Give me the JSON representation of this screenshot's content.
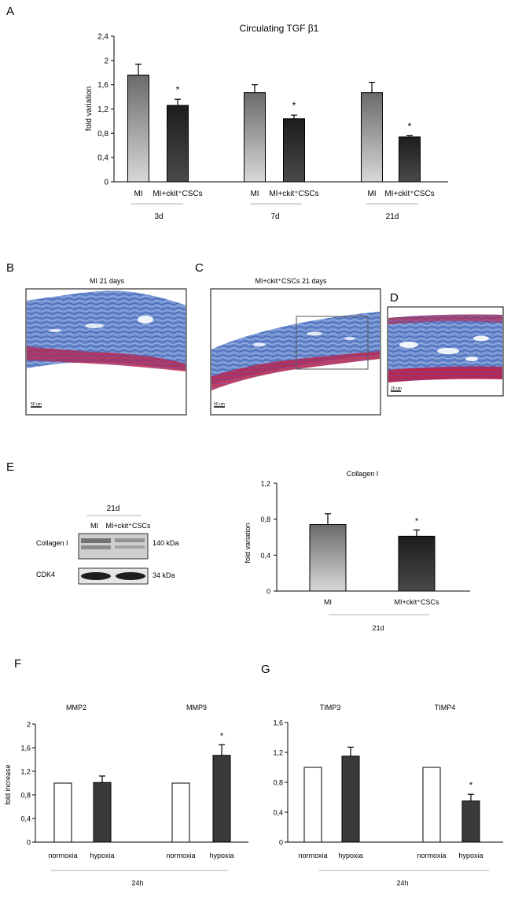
{
  "panels": {
    "a": "A",
    "b": "B",
    "c": "C",
    "d": "D",
    "e": "E",
    "f": "F",
    "g": "G"
  },
  "micrographs": {
    "b": {
      "title": "MI 21 days",
      "scale": "50 um"
    },
    "c": {
      "title": "MI+ckit⁺CSCs 21 days",
      "scale": "50 um"
    },
    "d": {
      "title": "",
      "scale": "20 um"
    },
    "colors": {
      "background": "#ffffff",
      "collagen_blue": "#4f78c4",
      "muscle_red": "#c0284a",
      "purple": "#7a4fa0"
    }
  },
  "western_blot": {
    "time": "21d",
    "lane_labels": [
      "MI",
      "MI+ckit⁺CSCs"
    ],
    "rows": [
      {
        "label": "Collagen I",
        "mw": "140 kDa"
      },
      {
        "label": "CDK4",
        "mw": "34 kDa"
      }
    ]
  },
  "chart_data": [
    {
      "id": "a",
      "type": "bar",
      "title": "Circulating TGF β1",
      "ylabel": "fold variation",
      "ylim": [
        0,
        2.4
      ],
      "yticks": [
        "0",
        "0,4",
        "0,8",
        "1,2",
        "1,6",
        "2",
        "2,4"
      ],
      "groups": [
        "3d",
        "7d",
        "21d"
      ],
      "categories": [
        "MI",
        "MI+ckit⁺CSCs",
        "MI",
        "MI+ckit⁺CSCs",
        "MI",
        "MI+ckit⁺CSCs"
      ],
      "values": [
        1.76,
        1.26,
        1.47,
        1.04,
        1.47,
        0.74
      ],
      "errors": [
        0.18,
        0.1,
        0.13,
        0.06,
        0.17,
        0.02
      ],
      "significance": [
        "",
        "*",
        "",
        "*",
        "",
        "*"
      ],
      "bar_styles": [
        "light-gradient",
        "dark-gradient",
        "light-gradient",
        "dark-gradient",
        "light-gradient",
        "dark-gradient"
      ]
    },
    {
      "id": "e",
      "type": "bar",
      "title": "Collagen I",
      "ylabel": "fold variation",
      "ylim": [
        0,
        1.2
      ],
      "yticks": [
        "0",
        "0,4",
        "0,8",
        "1,2"
      ],
      "groups": [
        "21d"
      ],
      "categories": [
        "MI",
        "MI+ckit⁺CSCs"
      ],
      "values": [
        0.74,
        0.61
      ],
      "errors": [
        0.12,
        0.07
      ],
      "significance": [
        "",
        "*"
      ],
      "bar_styles": [
        "light-gradient",
        "dark-gradient"
      ]
    },
    {
      "id": "f",
      "type": "bar",
      "title": "",
      "ylabel": "fold increase",
      "ylim": [
        0,
        2
      ],
      "yticks": [
        "0",
        "0,4",
        "0,8",
        "1,2",
        "1,6",
        "2"
      ],
      "groups": [
        "24h"
      ],
      "group_titles": [
        "MMP2",
        "MMP9"
      ],
      "categories": [
        "normoxia",
        "hypoxia",
        "normoxia",
        "hypoxia"
      ],
      "values": [
        1.0,
        1.01,
        1.0,
        1.47
      ],
      "errors": [
        0,
        0.11,
        0,
        0.18
      ],
      "significance": [
        "",
        "",
        "",
        "*"
      ],
      "bar_styles": [
        "white",
        "dark",
        "white",
        "dark"
      ]
    },
    {
      "id": "g",
      "type": "bar",
      "title": "",
      "ylabel": "",
      "ylim": [
        0,
        1.6
      ],
      "yticks": [
        "0",
        "0,4",
        "0,8",
        "1,2",
        "1,6"
      ],
      "groups": [
        "24h"
      ],
      "group_titles": [
        "TIMP3",
        "TIMP4"
      ],
      "categories": [
        "normoxia",
        "hypoxia",
        "normoxia",
        "hypoxia"
      ],
      "values": [
        1.0,
        1.15,
        1.0,
        0.55
      ],
      "errors": [
        0,
        0.12,
        0,
        0.09
      ],
      "significance": [
        "",
        "",
        "",
        "*"
      ],
      "bar_styles": [
        "white",
        "dark",
        "white",
        "dark"
      ]
    }
  ]
}
